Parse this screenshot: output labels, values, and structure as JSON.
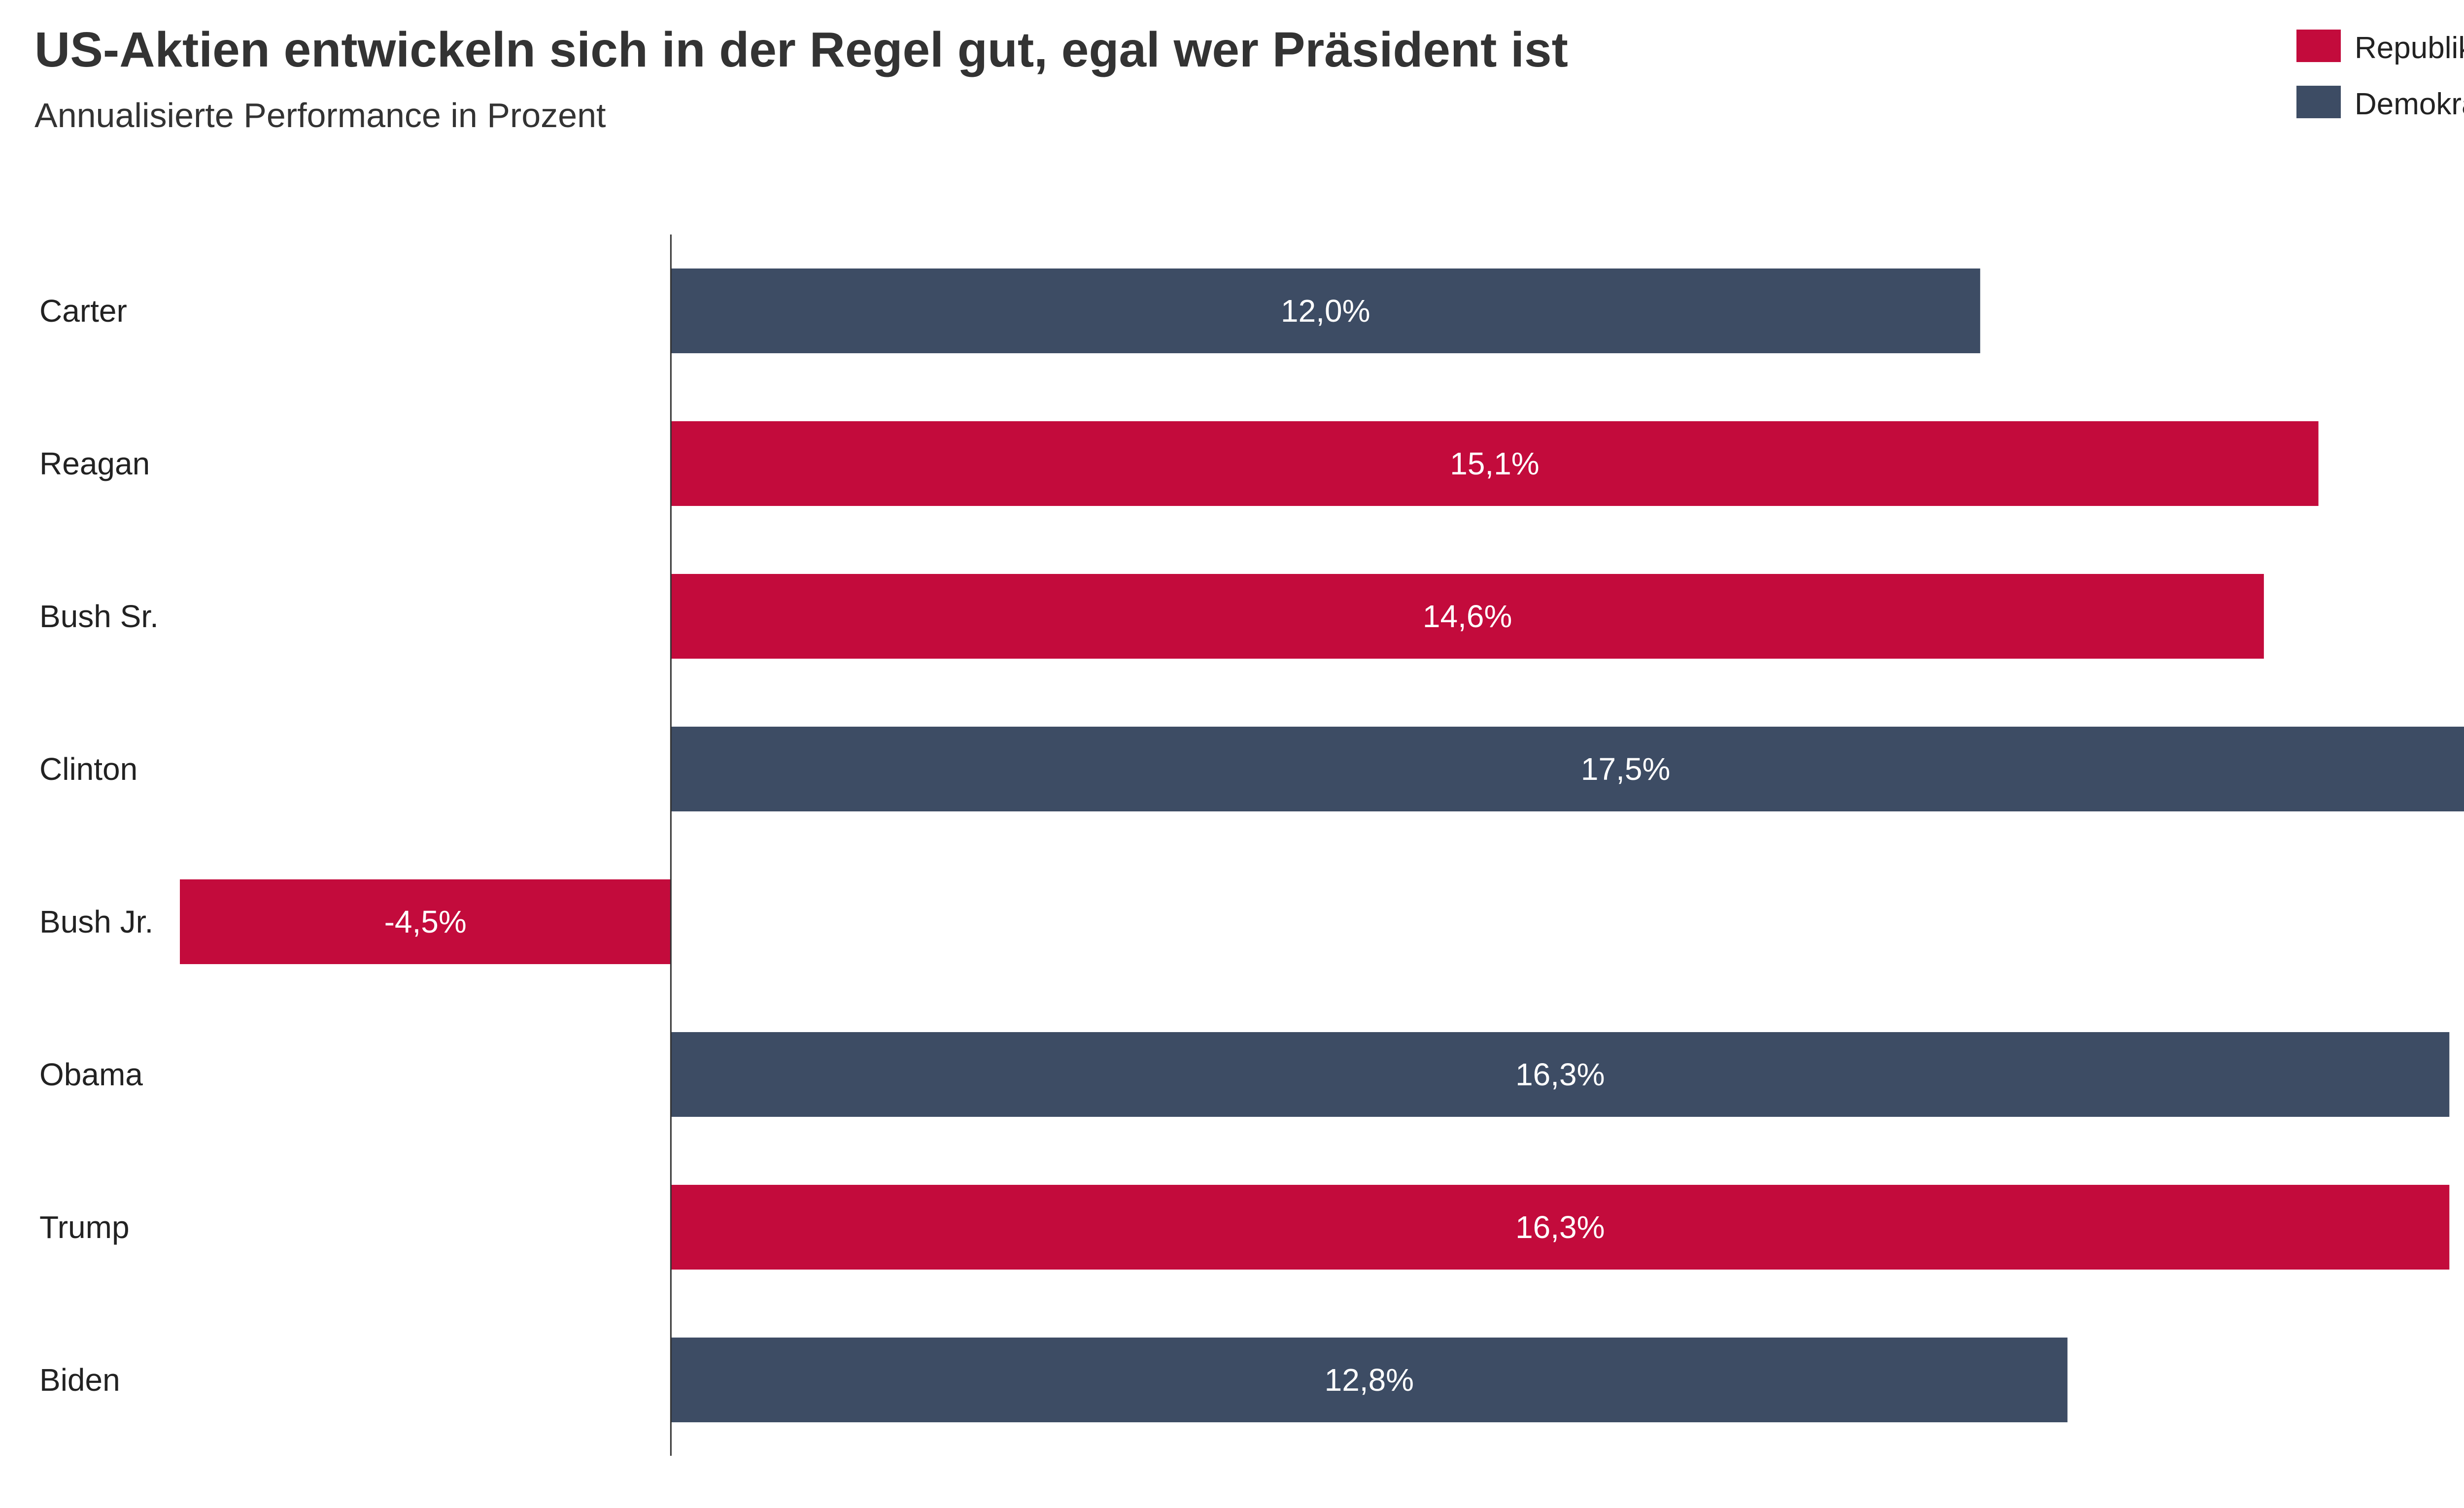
{
  "chart_data": {
    "type": "bar",
    "orientation": "horizontal",
    "title": "US-Aktien entwickeln sich in der Regel gut, egal wer Präsident ist",
    "subtitle": "Annualisierte Performance in Prozent",
    "categories": [
      "Carter",
      "Reagan",
      "Bush Sr.",
      "Clinton",
      "Bush Jr.",
      "Obama",
      "Trump",
      "Biden"
    ],
    "values": [
      12.0,
      15.1,
      14.6,
      17.5,
      -4.5,
      16.3,
      16.3,
      12.8
    ],
    "value_labels": [
      "12,0%",
      "15,1%",
      "14,6%",
      "17,5%",
      "-4,5%",
      "16,3%",
      "16,3%",
      "12,8%"
    ],
    "parties": [
      "Demokraten",
      "Republikaner",
      "Republikaner",
      "Demokraten",
      "Republikaner",
      "Demokraten",
      "Republikaner",
      "Demokraten"
    ],
    "series": [
      {
        "name": "Republikaner",
        "color": "#c30b3c"
      },
      {
        "name": "Demokraten",
        "color": "#3d4c64"
      }
    ],
    "xlim": [
      -4.5,
      17.5
    ],
    "grid": false,
    "legend_position": "top-right"
  }
}
